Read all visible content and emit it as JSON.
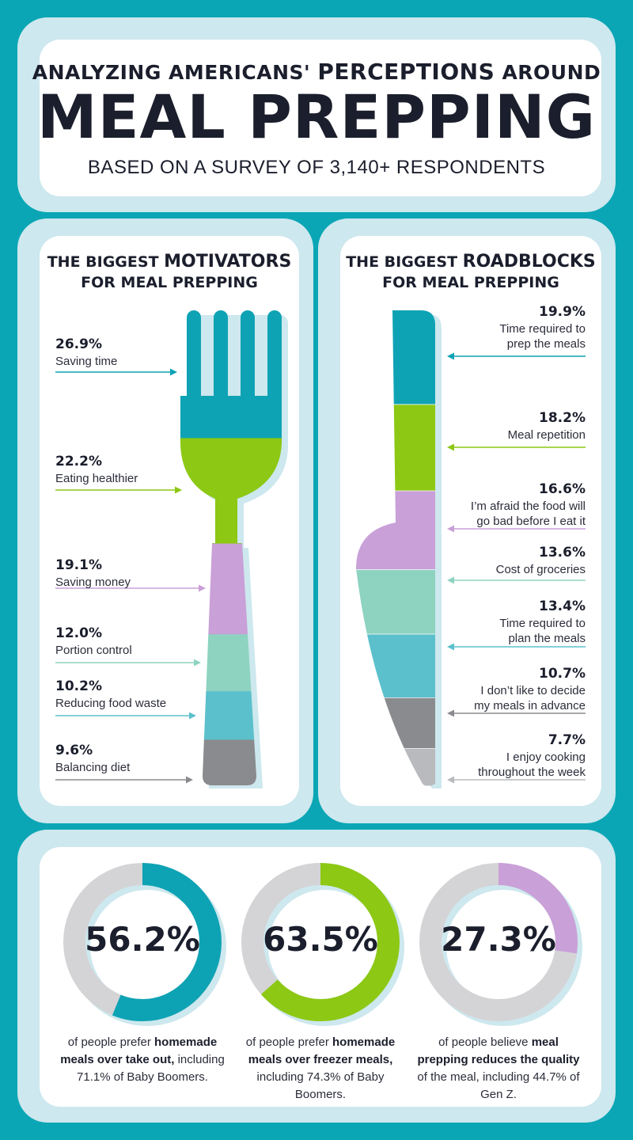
{
  "header": {
    "line1_pre": "ANALYZING AMERICANS'",
    "line1_bold": "PERCEPTIONS",
    "line1_post": "AROUND",
    "title": "MEAL PREPPING",
    "subtitle": "BASED ON A SURVEY OF 3,140+ RESPONDENTS"
  },
  "colors": {
    "bg": "#0aa6b5",
    "panel_border": "#cde8ee",
    "panel": "#ffffff",
    "ring_bg": "#d4d4d6"
  },
  "chart_data": [
    {
      "type": "bar",
      "title_pre": "THE BIGGEST",
      "title_bold": "MOTIVATORS",
      "title_post": "FOR MEAL PREPPING",
      "categories": [
        "Saving time",
        "Eating healthier",
        "Saving money",
        "Portion control",
        "Reducing food waste",
        "Balancing diet"
      ],
      "values": [
        26.9,
        22.2,
        19.1,
        12.0,
        10.2,
        9.6
      ],
      "labels": [
        "26.9%",
        "22.2%",
        "19.1%",
        "12.0%",
        "10.2%",
        "9.6%"
      ],
      "colors": [
        "#0ea3b4",
        "#8cc814",
        "#c9a0d8",
        "#8dd3c0",
        "#5bc0cc",
        "#8a8b8e"
      ]
    },
    {
      "type": "bar",
      "title_pre": "THE BIGGEST",
      "title_bold": "ROADBLOCKS",
      "title_post": "FOR MEAL PREPPING",
      "categories": [
        "Time required to prep the meals",
        "Meal repetition",
        "I'm afraid the food will go bad before I eat it",
        "Cost of groceries",
        "Time required to plan the meals",
        "I don't like to decide my meals in advance",
        "I enjoy cooking throughout the week"
      ],
      "label_lines": [
        [
          "Time required to",
          "prep the meals"
        ],
        [
          "Meal repetition"
        ],
        [
          "I’m afraid the food will",
          "go bad before I eat it"
        ],
        [
          "Cost of groceries"
        ],
        [
          "Time required to",
          "plan the meals"
        ],
        [
          "I don’t like to decide",
          "my meals in advance"
        ],
        [
          "I enjoy cooking",
          "throughout the week"
        ]
      ],
      "values": [
        19.9,
        18.2,
        16.6,
        13.6,
        13.4,
        10.7,
        7.7
      ],
      "labels": [
        "19.9%",
        "18.2%",
        "16.6%",
        "13.6%",
        "13.4%",
        "10.7%",
        "7.7%"
      ],
      "colors": [
        "#0ea3b4",
        "#8cc814",
        "#c9a0d8",
        "#8dd3c0",
        "#5bc0cc",
        "#8a8b8e",
        "#b9babd"
      ]
    },
    {
      "type": "pie",
      "values": [
        56.2,
        63.5,
        27.3
      ],
      "labels": [
        "56.2%",
        "63.5%",
        "27.3%"
      ],
      "colors": [
        "#0ea3b4",
        "#8cc814",
        "#c9a0d8"
      ]
    }
  ],
  "donuts": [
    {
      "pre": "of people prefer",
      "bold": "homemade meals over take out,",
      "post": "including 71.1% of Baby Boomers."
    },
    {
      "pre": "of people prefer",
      "bold": "homemade meals over freezer meals,",
      "post": "including 74.3% of Baby Boomers."
    },
    {
      "pre": "of people believe",
      "bold": "meal prepping reduces the quality",
      "post": "of the meal, including 44.7% of Gen Z."
    }
  ]
}
